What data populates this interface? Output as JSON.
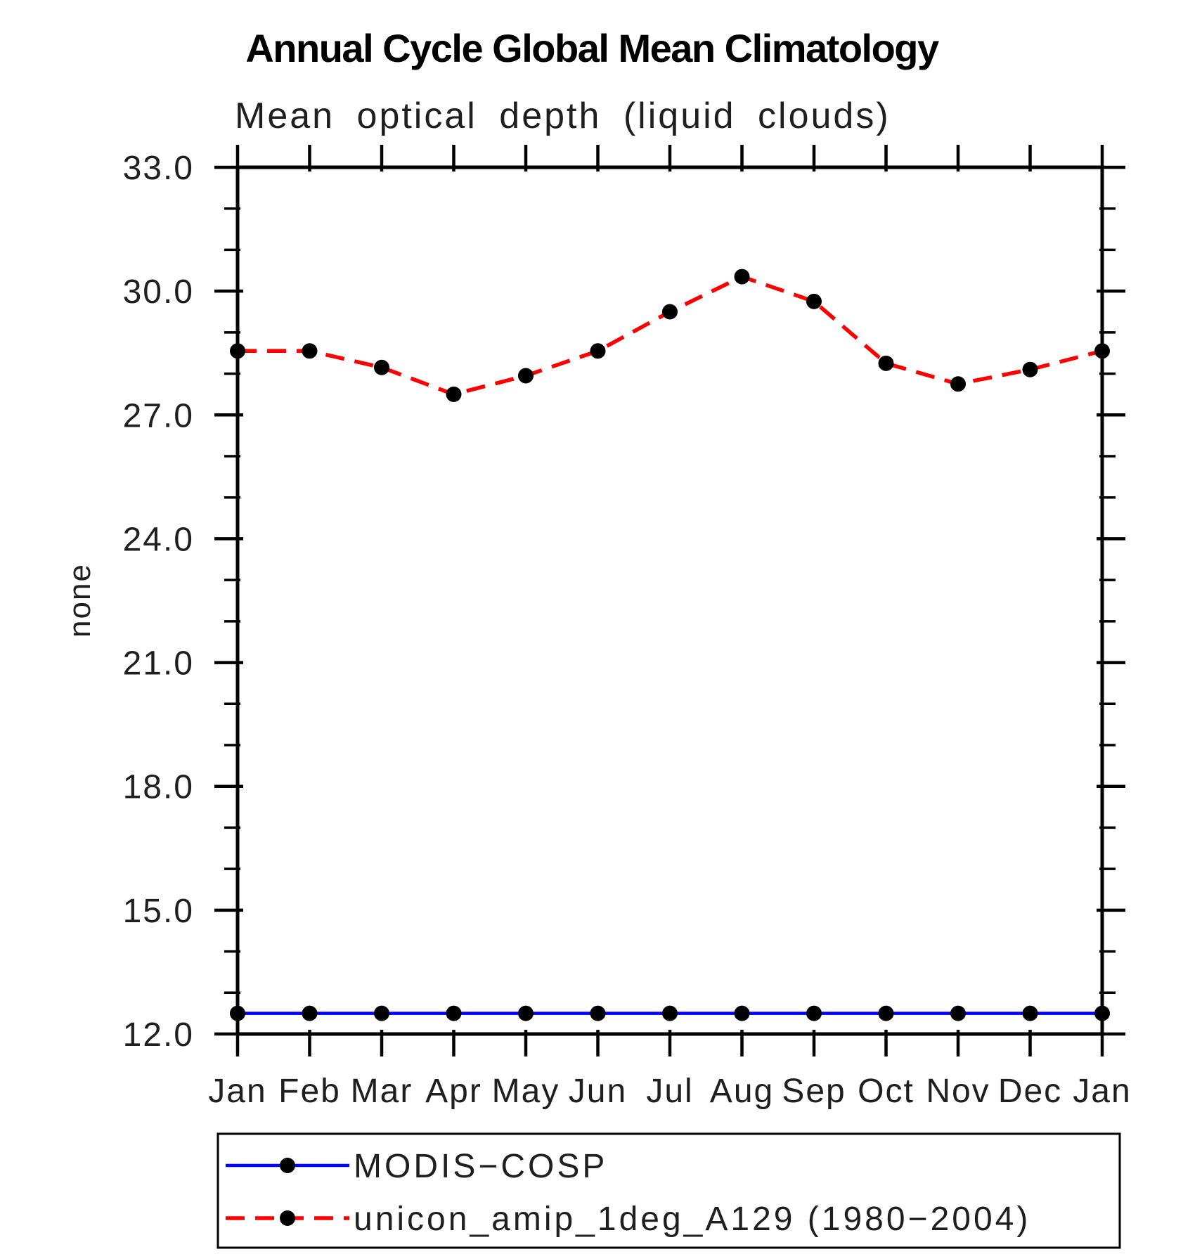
{
  "page": {
    "background": "#ffffff"
  },
  "chart_data": {
    "type": "line",
    "title": "Annual Cycle Global Mean Climatology",
    "subtitle": "Mean optical depth (liquid clouds)",
    "ylabel": "none",
    "xlabel": "",
    "x_categories": [
      "Jan",
      "Feb",
      "Mar",
      "Apr",
      "May",
      "Jun",
      "Jul",
      "Aug",
      "Sep",
      "Oct",
      "Nov",
      "Dec",
      "Jan"
    ],
    "ylim": [
      12.0,
      33.0
    ],
    "ytick_major_values": [
      12.0,
      15.0,
      18.0,
      21.0,
      24.0,
      27.0,
      30.0,
      33.0
    ],
    "ytick_labels": [
      "12.0",
      "15.0",
      "18.0",
      "21.0",
      "24.0",
      "27.0",
      "30.0",
      "33.0"
    ],
    "ytick_minor_interval": 1.0,
    "grid": false,
    "axis_color": "#000000",
    "series": [
      {
        "name": "MODIS−COSP",
        "line_color": "#0000ff",
        "line_style": "solid",
        "marker": "filled-circle",
        "marker_color": "#000000",
        "values": [
          12.5,
          12.5,
          12.5,
          12.5,
          12.5,
          12.5,
          12.5,
          12.5,
          12.5,
          12.5,
          12.5,
          12.5,
          12.5
        ]
      },
      {
        "name": "unicon_amip_1deg_A129 (1980−2004)",
        "line_color": "#ff0000",
        "line_style": "dashed",
        "marker": "filled-circle",
        "marker_color": "#000000",
        "values": [
          28.55,
          28.55,
          28.15,
          27.5,
          27.95,
          28.55,
          29.5,
          30.35,
          29.75,
          28.25,
          27.75,
          28.1,
          28.55
        ]
      }
    ],
    "legend": {
      "position": "below-plot",
      "entries": [
        "MODIS−COSP",
        "unicon_amip_1deg_A129 (1980−2004)"
      ]
    }
  }
}
